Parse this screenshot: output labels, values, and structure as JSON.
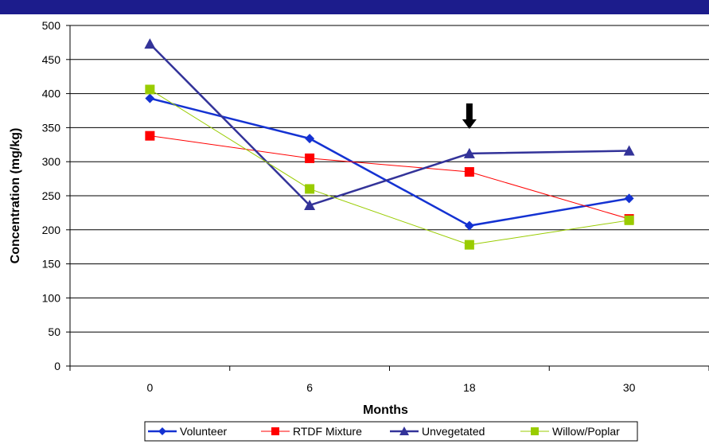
{
  "header": {
    "bar_color": "#1c1c8c"
  },
  "chart_data": {
    "type": "line",
    "categories": [
      "0",
      "6",
      "18",
      "30"
    ],
    "xlabel": "Months",
    "ylabel": "Concentration (mg/kg)",
    "ylim": [
      0,
      500
    ],
    "yticks": [
      0,
      50,
      100,
      150,
      200,
      250,
      300,
      350,
      400,
      450,
      500
    ],
    "grid": true,
    "legend_position": "bottom",
    "series": [
      {
        "name": "Volunteer",
        "values": [
          393,
          334,
          206,
          246
        ],
        "color": "#1432d2",
        "marker": "diamond",
        "line_width": 2.5
      },
      {
        "name": "RTDF Mixture",
        "values": [
          338,
          305,
          285,
          216
        ],
        "color": "#ff0000",
        "marker": "square",
        "line_width": 1
      },
      {
        "name": "Unvegetated",
        "values": [
          473,
          236,
          312,
          316
        ],
        "color": "#333399",
        "marker": "triangle",
        "line_width": 2.5
      },
      {
        "name": "Willow/Poplar",
        "values": [
          406,
          260,
          178,
          214
        ],
        "color": "#99cc00",
        "marker": "square",
        "line_width": 1
      }
    ],
    "annotations": [
      {
        "type": "arrow-down",
        "category": "18"
      }
    ]
  }
}
